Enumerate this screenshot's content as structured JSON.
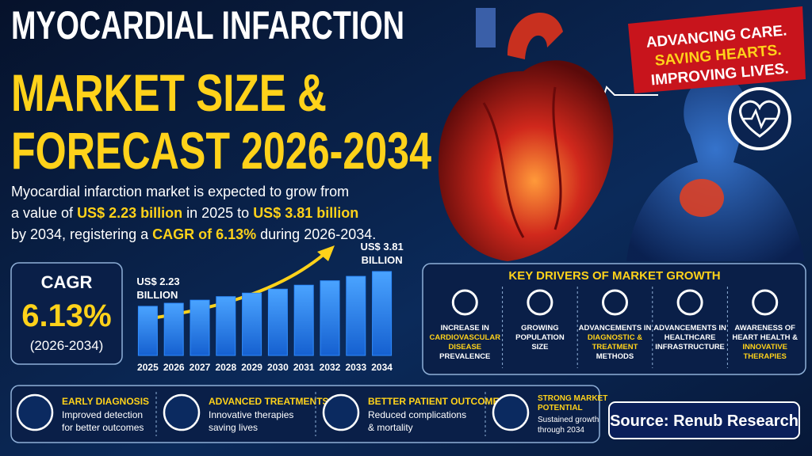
{
  "header": {
    "title_lines": [
      "MYOCARDIAL INFARCTION",
      "MARKET SIZE &",
      "FORECAST 2026-2034"
    ]
  },
  "intro": [
    [
      {
        "text": "Myocardial infarction market is expected to grow from",
        "highlight": false
      }
    ],
    [
      {
        "text": "a value of ",
        "highlight": false
      },
      {
        "text": "US$ 2.23 billion",
        "highlight": true
      },
      {
        "text": " in 2025 to ",
        "highlight": false
      },
      {
        "text": "US$ 3.81 billion",
        "highlight": true
      }
    ],
    [
      {
        "text": "by 2034, registering a ",
        "highlight": false
      },
      {
        "text": "CAGR of 6.13%",
        "highlight": true
      },
      {
        "text": " during 2026-2034.",
        "highlight": false
      }
    ]
  ],
  "banner": {
    "lines": [
      "ADVANCING CARE.",
      "SAVING HEARTS.",
      "IMPROVING LIVES."
    ]
  },
  "cagr": {
    "label": "CAGR",
    "value": "6.13%",
    "period": "(2026-2034)"
  },
  "chart_data": {
    "type": "bar",
    "categories": [
      "2025",
      "2026",
      "2027",
      "2028",
      "2029",
      "2030",
      "2031",
      "2032",
      "2033",
      "2034"
    ],
    "values": [
      2.23,
      2.37,
      2.51,
      2.67,
      2.83,
      3.01,
      3.19,
      3.39,
      3.59,
      3.81
    ],
    "value_labels": [
      [
        "US$ 2.23",
        "BILLION"
      ],
      null,
      null,
      null,
      null,
      null,
      null,
      null,
      null,
      [
        "US$ 3.81",
        "BILLION"
      ]
    ],
    "color": "#2f8cff"
  },
  "drivers": {
    "title": "KEY DRIVERS OF MARKET GROWTH",
    "items": [
      [
        {
          "text": "INCREASE IN",
          "highlight": false
        },
        {
          "text": "CARDIOVASCULAR",
          "highlight": true
        },
        {
          "text": "DISEASE",
          "highlight": true
        },
        {
          "text": "PREVALENCE",
          "highlight": false
        }
      ],
      [
        {
          "text": "GROWING",
          "highlight": false
        },
        {
          "text": "POPULATION",
          "highlight": false
        },
        {
          "text": "SIZE",
          "highlight": false
        }
      ],
      [
        {
          "text": "ADVANCEMENTS IN",
          "highlight": false
        },
        {
          "text": "DIAGNOSTIC &",
          "highlight": true
        },
        {
          "text": "TREATMENT",
          "highlight": true
        },
        {
          "text": "METHODS",
          "highlight": false
        }
      ],
      [
        {
          "text": "ADVANCEMENTS IN",
          "highlight": false
        },
        {
          "text": "HEALTHCARE",
          "highlight": false
        },
        {
          "text": "INFRASTRUCTURE",
          "highlight": false
        }
      ],
      [
        {
          "text": "AWARENESS OF",
          "highlight": false
        },
        {
          "text": "HEART HEALTH &",
          "highlight": false
        },
        {
          "text": "INNOVATIVE",
          "highlight": true
        },
        {
          "text": "THERAPIES",
          "highlight": true
        }
      ]
    ]
  },
  "benefits": [
    {
      "title": [
        "EARLY DIAGNOSIS"
      ],
      "text": [
        "Improved detection",
        "for better outcomes"
      ]
    },
    {
      "title": [
        "ADVANCED TREATMENTS"
      ],
      "text": [
        "Innovative therapies",
        "saving lives"
      ]
    },
    {
      "title": [
        "BETTER PATIENT OUTCOMES"
      ],
      "text": [
        "Reduced complications",
        "& mortality"
      ]
    },
    {
      "title": [
        "STRONG MARKET",
        "POTENTIAL"
      ],
      "text": [
        "Sustained growth",
        "through 2034"
      ]
    }
  ],
  "source": "Source: Renub Research"
}
